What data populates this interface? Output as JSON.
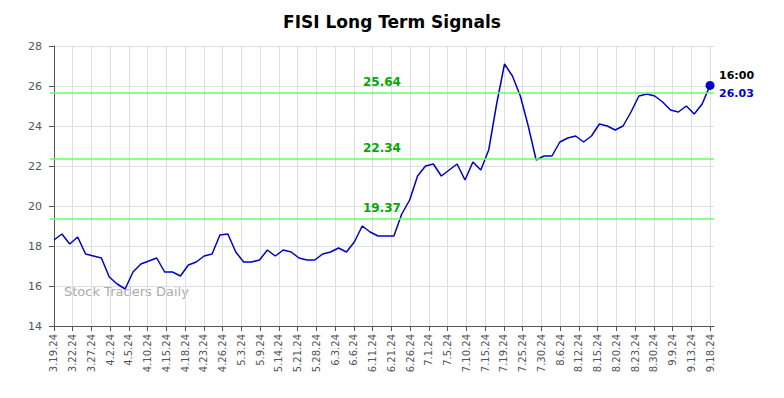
{
  "chart_data": {
    "type": "line",
    "title": "FISI Long Term Signals",
    "color": "#0000cc",
    "x": [
      0,
      1,
      2,
      3,
      4,
      5,
      6,
      7,
      8,
      9,
      10,
      11,
      12,
      13,
      14,
      15,
      16,
      17,
      18,
      19,
      20,
      21,
      22,
      23,
      24,
      25,
      26,
      27,
      28,
      29,
      30,
      31,
      32,
      33,
      34,
      35,
      36,
      37,
      38,
      39,
      40,
      41,
      42,
      43,
      44,
      45,
      46,
      47,
      48,
      49,
      50,
      51,
      52,
      53,
      54,
      55,
      56,
      57,
      58,
      59,
      60,
      61,
      62,
      63,
      64,
      65,
      66,
      67,
      68,
      69,
      70,
      71,
      72,
      73,
      74,
      75,
      76,
      77,
      78,
      79,
      80,
      81,
      82,
      83
    ],
    "values": [
      18.3,
      18.6,
      18.1,
      18.45,
      17.6,
      17.5,
      17.4,
      16.45,
      16.1,
      15.85,
      16.7,
      17.1,
      17.25,
      17.4,
      16.7,
      16.7,
      16.5,
      17.05,
      17.2,
      17.5,
      17.6,
      18.55,
      18.6,
      17.7,
      17.2,
      17.2,
      17.3,
      17.8,
      17.5,
      17.8,
      17.7,
      17.4,
      17.3,
      17.3,
      17.6,
      17.7,
      17.9,
      17.7,
      18.2,
      19.0,
      18.7,
      18.5,
      18.5,
      18.5,
      19.6,
      20.3,
      21.5,
      22.0,
      22.1,
      21.5,
      21.8,
      22.1,
      21.3,
      22.2,
      21.8,
      22.8,
      25.1,
      27.1,
      26.5,
      25.5,
      24.0,
      22.3,
      22.5,
      22.5,
      23.2,
      23.4,
      23.5,
      23.2,
      23.5,
      24.1,
      24.0,
      23.8,
      24.0,
      24.7,
      25.5,
      25.6,
      25.5,
      25.2,
      24.8,
      24.7,
      25.0,
      24.6,
      25.1,
      26.03
    ],
    "xlim": [
      -0.5,
      83.5
    ],
    "xticks": [
      {
        "value": 0,
        "label": "3.19.24"
      },
      {
        "value": 2.3714285714285714,
        "label": "3.22.24"
      },
      {
        "value": 4.742857142857143,
        "label": "3.27.24"
      },
      {
        "value": 7.114285714285714,
        "label": "4.2.24"
      },
      {
        "value": 9.485714285714286,
        "label": "4.5.24"
      },
      {
        "value": 11.857142857142858,
        "label": "4.10.24"
      },
      {
        "value": 14.228571428571428,
        "label": "4.15.24"
      },
      {
        "value": 16.6,
        "label": "4.18.24"
      },
      {
        "value": 18.97142857142857,
        "label": "4.23.24"
      },
      {
        "value": 21.342857142857145,
        "label": "4.26.24"
      },
      {
        "value": 23.714285714285715,
        "label": "5.3.24"
      },
      {
        "value": 26.085714285714285,
        "label": "5.9.24"
      },
      {
        "value": 28.457142857142856,
        "label": "5.14.24"
      },
      {
        "value": 30.82857142857143,
        "label": "5.21.24"
      },
      {
        "value": 33.2,
        "label": "5.28.24"
      },
      {
        "value": 35.57142857142857,
        "label": "6.3.24"
      },
      {
        "value": 37.94285714285714,
        "label": "6.6.24"
      },
      {
        "value": 40.31428571428572,
        "label": "6.11.24"
      },
      {
        "value": 42.68571428571429,
        "label": "6.21.24"
      },
      {
        "value": 45.05714285714286,
        "label": "6.26.24"
      },
      {
        "value": 47.42857142857143,
        "label": "7.1.24"
      },
      {
        "value": 49.8,
        "label": "7.5.24"
      },
      {
        "value": 52.17142857142857,
        "label": "7.10.24"
      },
      {
        "value": 54.542857142857144,
        "label": "7.15.24"
      },
      {
        "value": 56.91428571428571,
        "label": "7.19.24"
      },
      {
        "value": 59.28571428571429,
        "label": "7.25.24"
      },
      {
        "value": 61.65714285714286,
        "label": "7.30.24"
      },
      {
        "value": 64.02857142857142,
        "label": "8.6.24"
      },
      {
        "value": 66.4,
        "label": "8.12.24"
      },
      {
        "value": 68.77142857142857,
        "label": "8.15.24"
      },
      {
        "value": 71.14285714285714,
        "label": "8.20.24"
      },
      {
        "value": 73.51428571428572,
        "label": "8.23.24"
      },
      {
        "value": 75.88571428571429,
        "label": "8.30.24"
      },
      {
        "value": 78.25714285714285,
        "label": "9.9.24"
      },
      {
        "value": 80.62857142857143,
        "label": "9.13.24"
      },
      {
        "value": 83,
        "label": "9.18.24"
      }
    ],
    "ylim": [
      14,
      28
    ],
    "yticks": [
      14,
      16,
      18,
      20,
      22,
      24,
      26,
      28
    ],
    "grid": true,
    "hlines": [
      {
        "y": 25.64,
        "label": "25.64",
        "color": "#66ff66",
        "label_color": "#00aa00"
      },
      {
        "y": 22.34,
        "label": "22.34",
        "color": "#66ff66",
        "label_color": "#00aa00"
      },
      {
        "y": 19.37,
        "label": "19.37",
        "color": "#66ff66",
        "label_color": "#00aa00"
      }
    ],
    "annotations": [
      {
        "text": "16:00",
        "x": 83,
        "y": 26.03,
        "color": "#000000"
      },
      {
        "text": "26.03",
        "x": 83,
        "y": 26.03,
        "color": "#0000cc"
      }
    ],
    "watermark": {
      "text": "Stock Traders Daily",
      "color": "#aaaaaa"
    }
  }
}
